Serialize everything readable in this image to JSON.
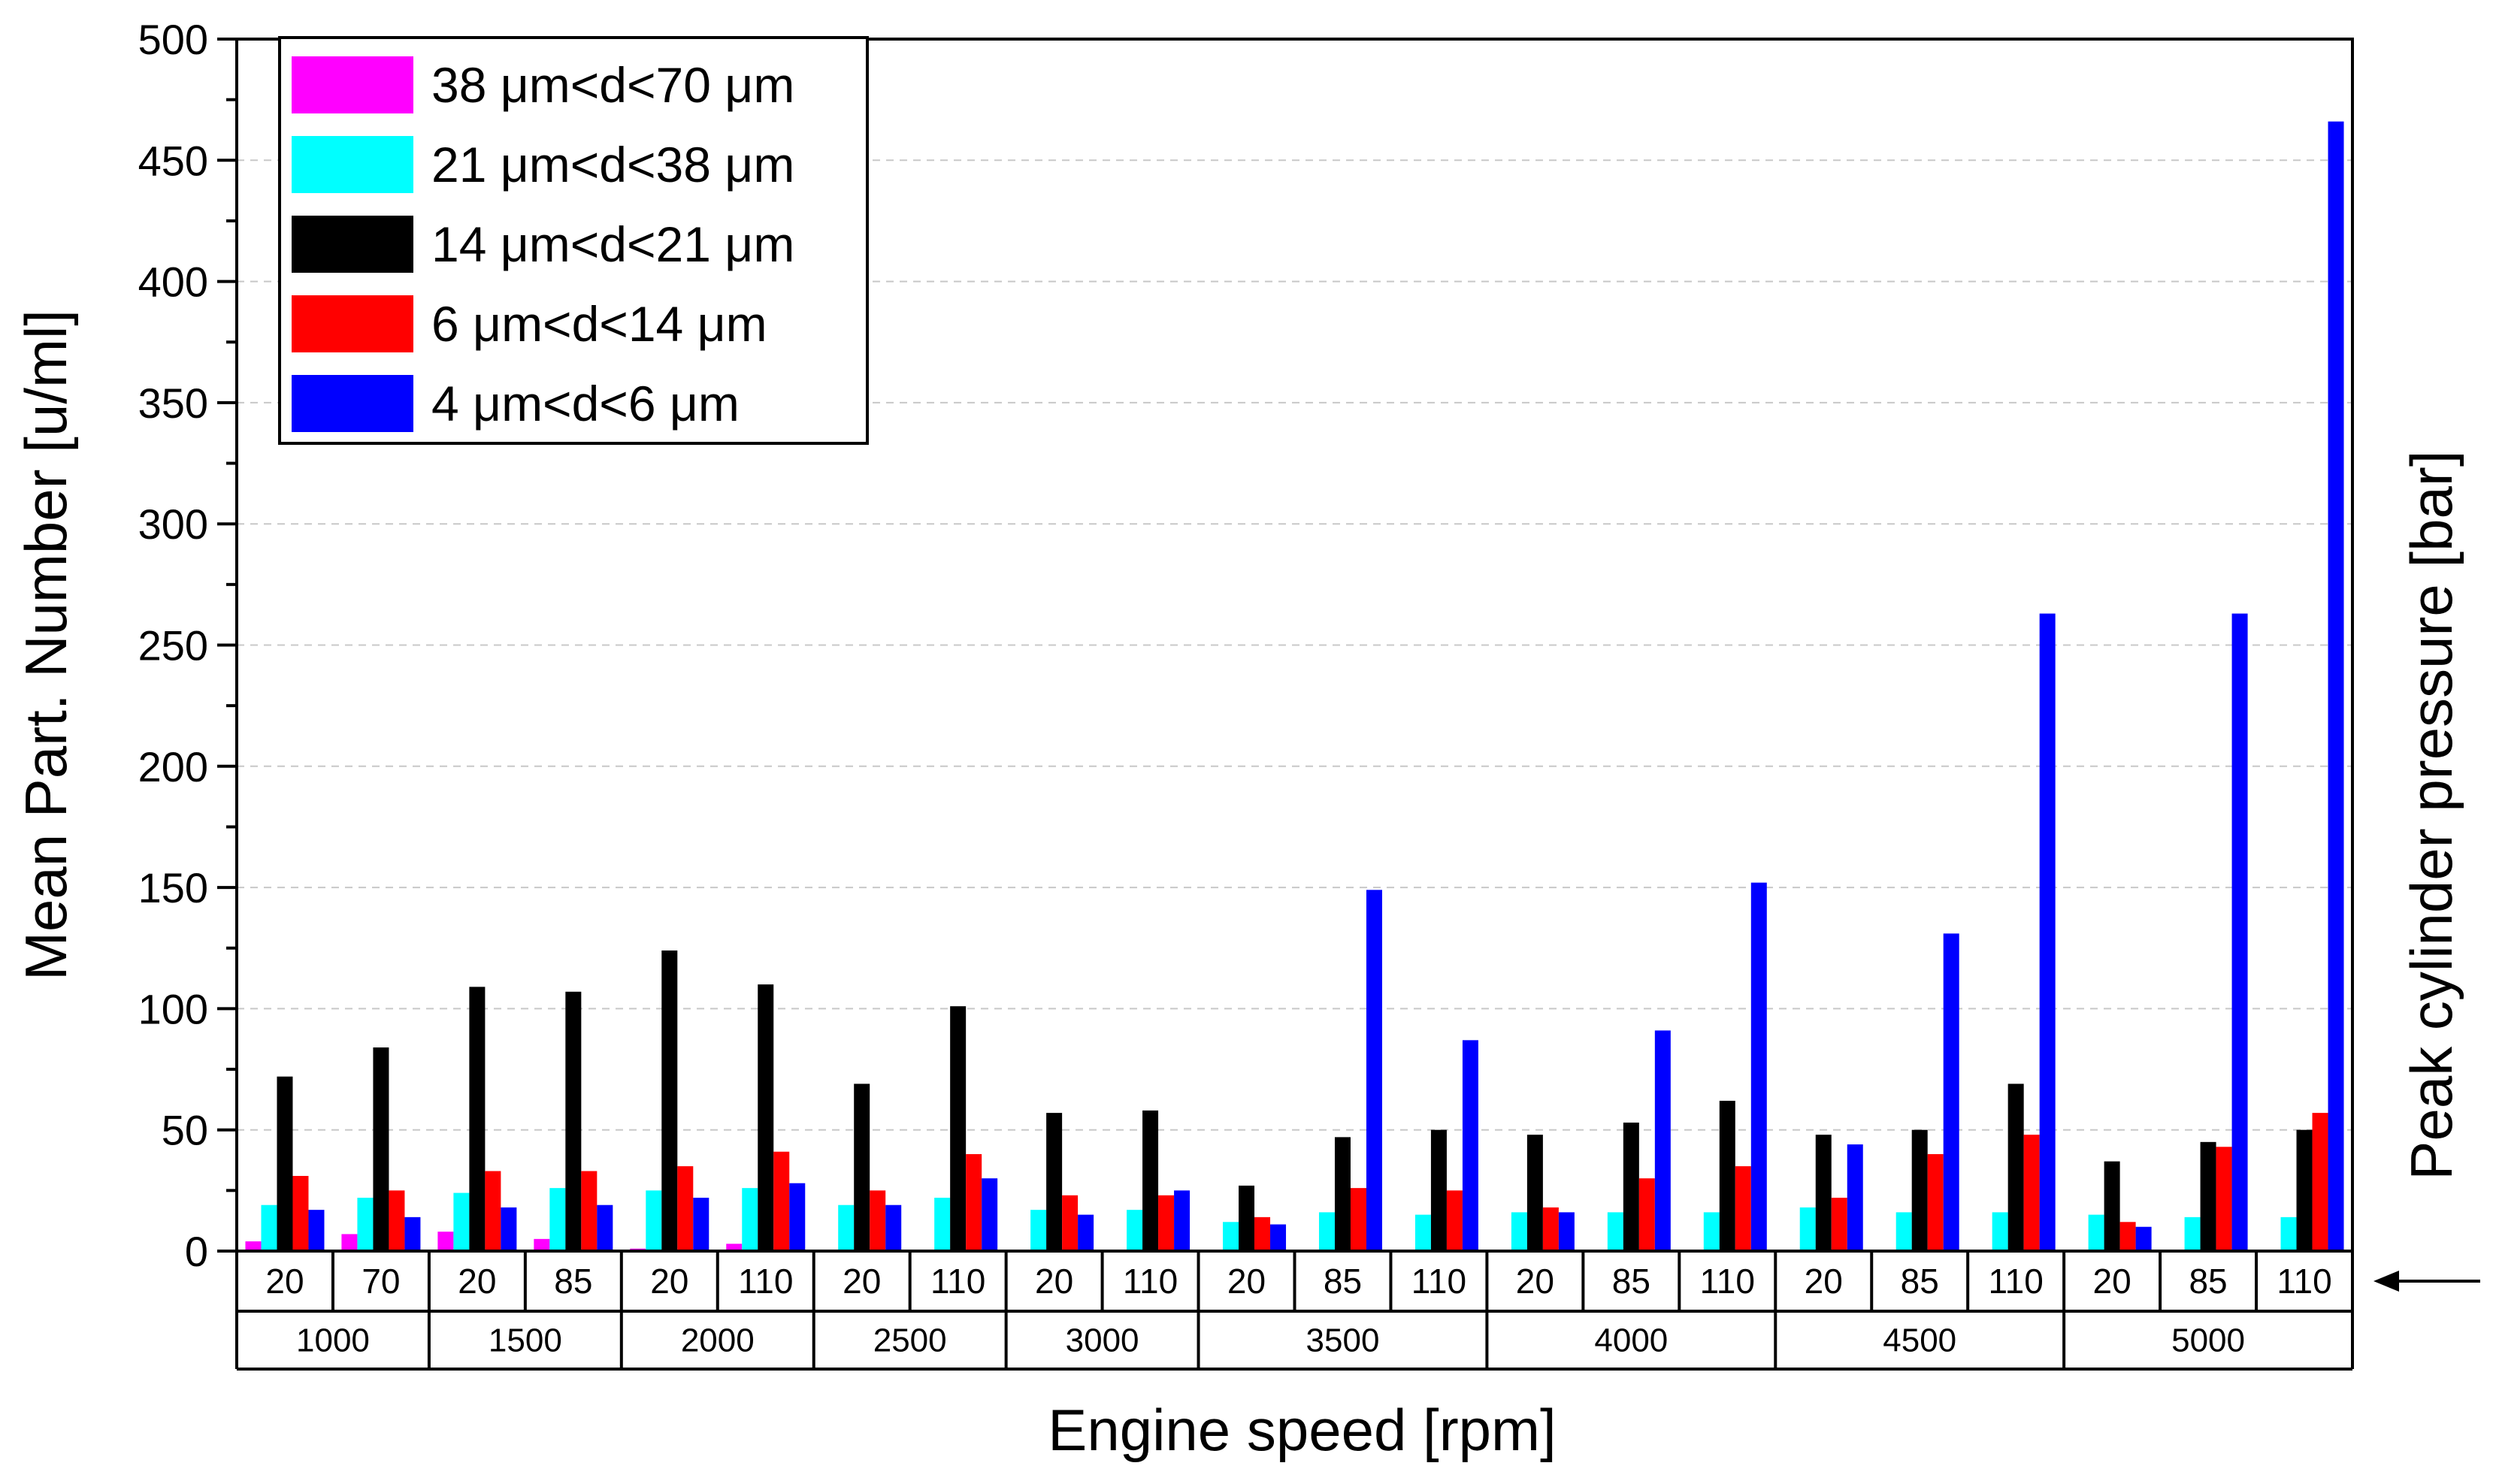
{
  "chart_data": {
    "type": "bar",
    "title": "",
    "xlabel": "Engine speed [rpm]",
    "ylabel": "Mean Part. Number [u/ml]",
    "right_label": "Peak cylinder pressure [bar]",
    "ylim": [
      0,
      500
    ],
    "yticks": [
      "0",
      "50",
      "100",
      "150",
      "200",
      "250",
      "300",
      "350",
      "400",
      "450",
      "500"
    ],
    "grid": true,
    "legend_position": "top-left",
    "categories": [
      "20",
      "70",
      "20",
      "85",
      "20",
      "110",
      "20",
      "110",
      "20",
      "110",
      "20",
      "85",
      "110",
      "20",
      "85",
      "110",
      "20",
      "85",
      "110",
      "20",
      "85",
      "110"
    ],
    "groups": [
      {
        "label": "1000",
        "count": 2
      },
      {
        "label": "1500",
        "count": 2
      },
      {
        "label": "2000",
        "count": 2
      },
      {
        "label": "2500",
        "count": 2
      },
      {
        "label": "3000",
        "count": 2
      },
      {
        "label": "3500",
        "count": 3
      },
      {
        "label": "4000",
        "count": 3
      },
      {
        "label": "4500",
        "count": 3
      },
      {
        "label": "5000",
        "count": 3
      }
    ],
    "series": [
      {
        "name": "38 μm<d<70 μm",
        "color": "#ff00ff",
        "values": [
          4,
          7,
          8,
          5,
          1,
          3,
          0,
          0,
          0,
          0,
          0,
          0,
          0,
          0,
          0,
          0,
          0,
          0,
          0,
          0,
          0,
          0
        ]
      },
      {
        "name": "21 μm<d<38 μm",
        "color": "#00ffff",
        "values": [
          19,
          22,
          24,
          26,
          25,
          26,
          19,
          22,
          17,
          17,
          12,
          16,
          15,
          16,
          16,
          16,
          18,
          16,
          16,
          15,
          14,
          14
        ]
      },
      {
        "name": "14 μm<d<21 μm",
        "color": "#000000",
        "values": [
          72,
          84,
          109,
          107,
          124,
          110,
          69,
          101,
          57,
          58,
          27,
          47,
          50,
          48,
          53,
          62,
          48,
          50,
          69,
          37,
          45,
          50
        ]
      },
      {
        "name": "6 μm<d<14 μm",
        "color": "#ff0000",
        "values": [
          31,
          25,
          33,
          33,
          35,
          41,
          25,
          40,
          23,
          23,
          14,
          26,
          25,
          18,
          30,
          35,
          22,
          40,
          48,
          12,
          43,
          57
        ]
      },
      {
        "name": "4 μm<d<6 μm",
        "color": "#0000ff",
        "values": [
          17,
          14,
          18,
          19,
          22,
          28,
          19,
          30,
          15,
          25,
          11,
          149,
          87,
          16,
          91,
          152,
          44,
          131,
          263,
          10,
          263,
          466
        ]
      }
    ]
  }
}
